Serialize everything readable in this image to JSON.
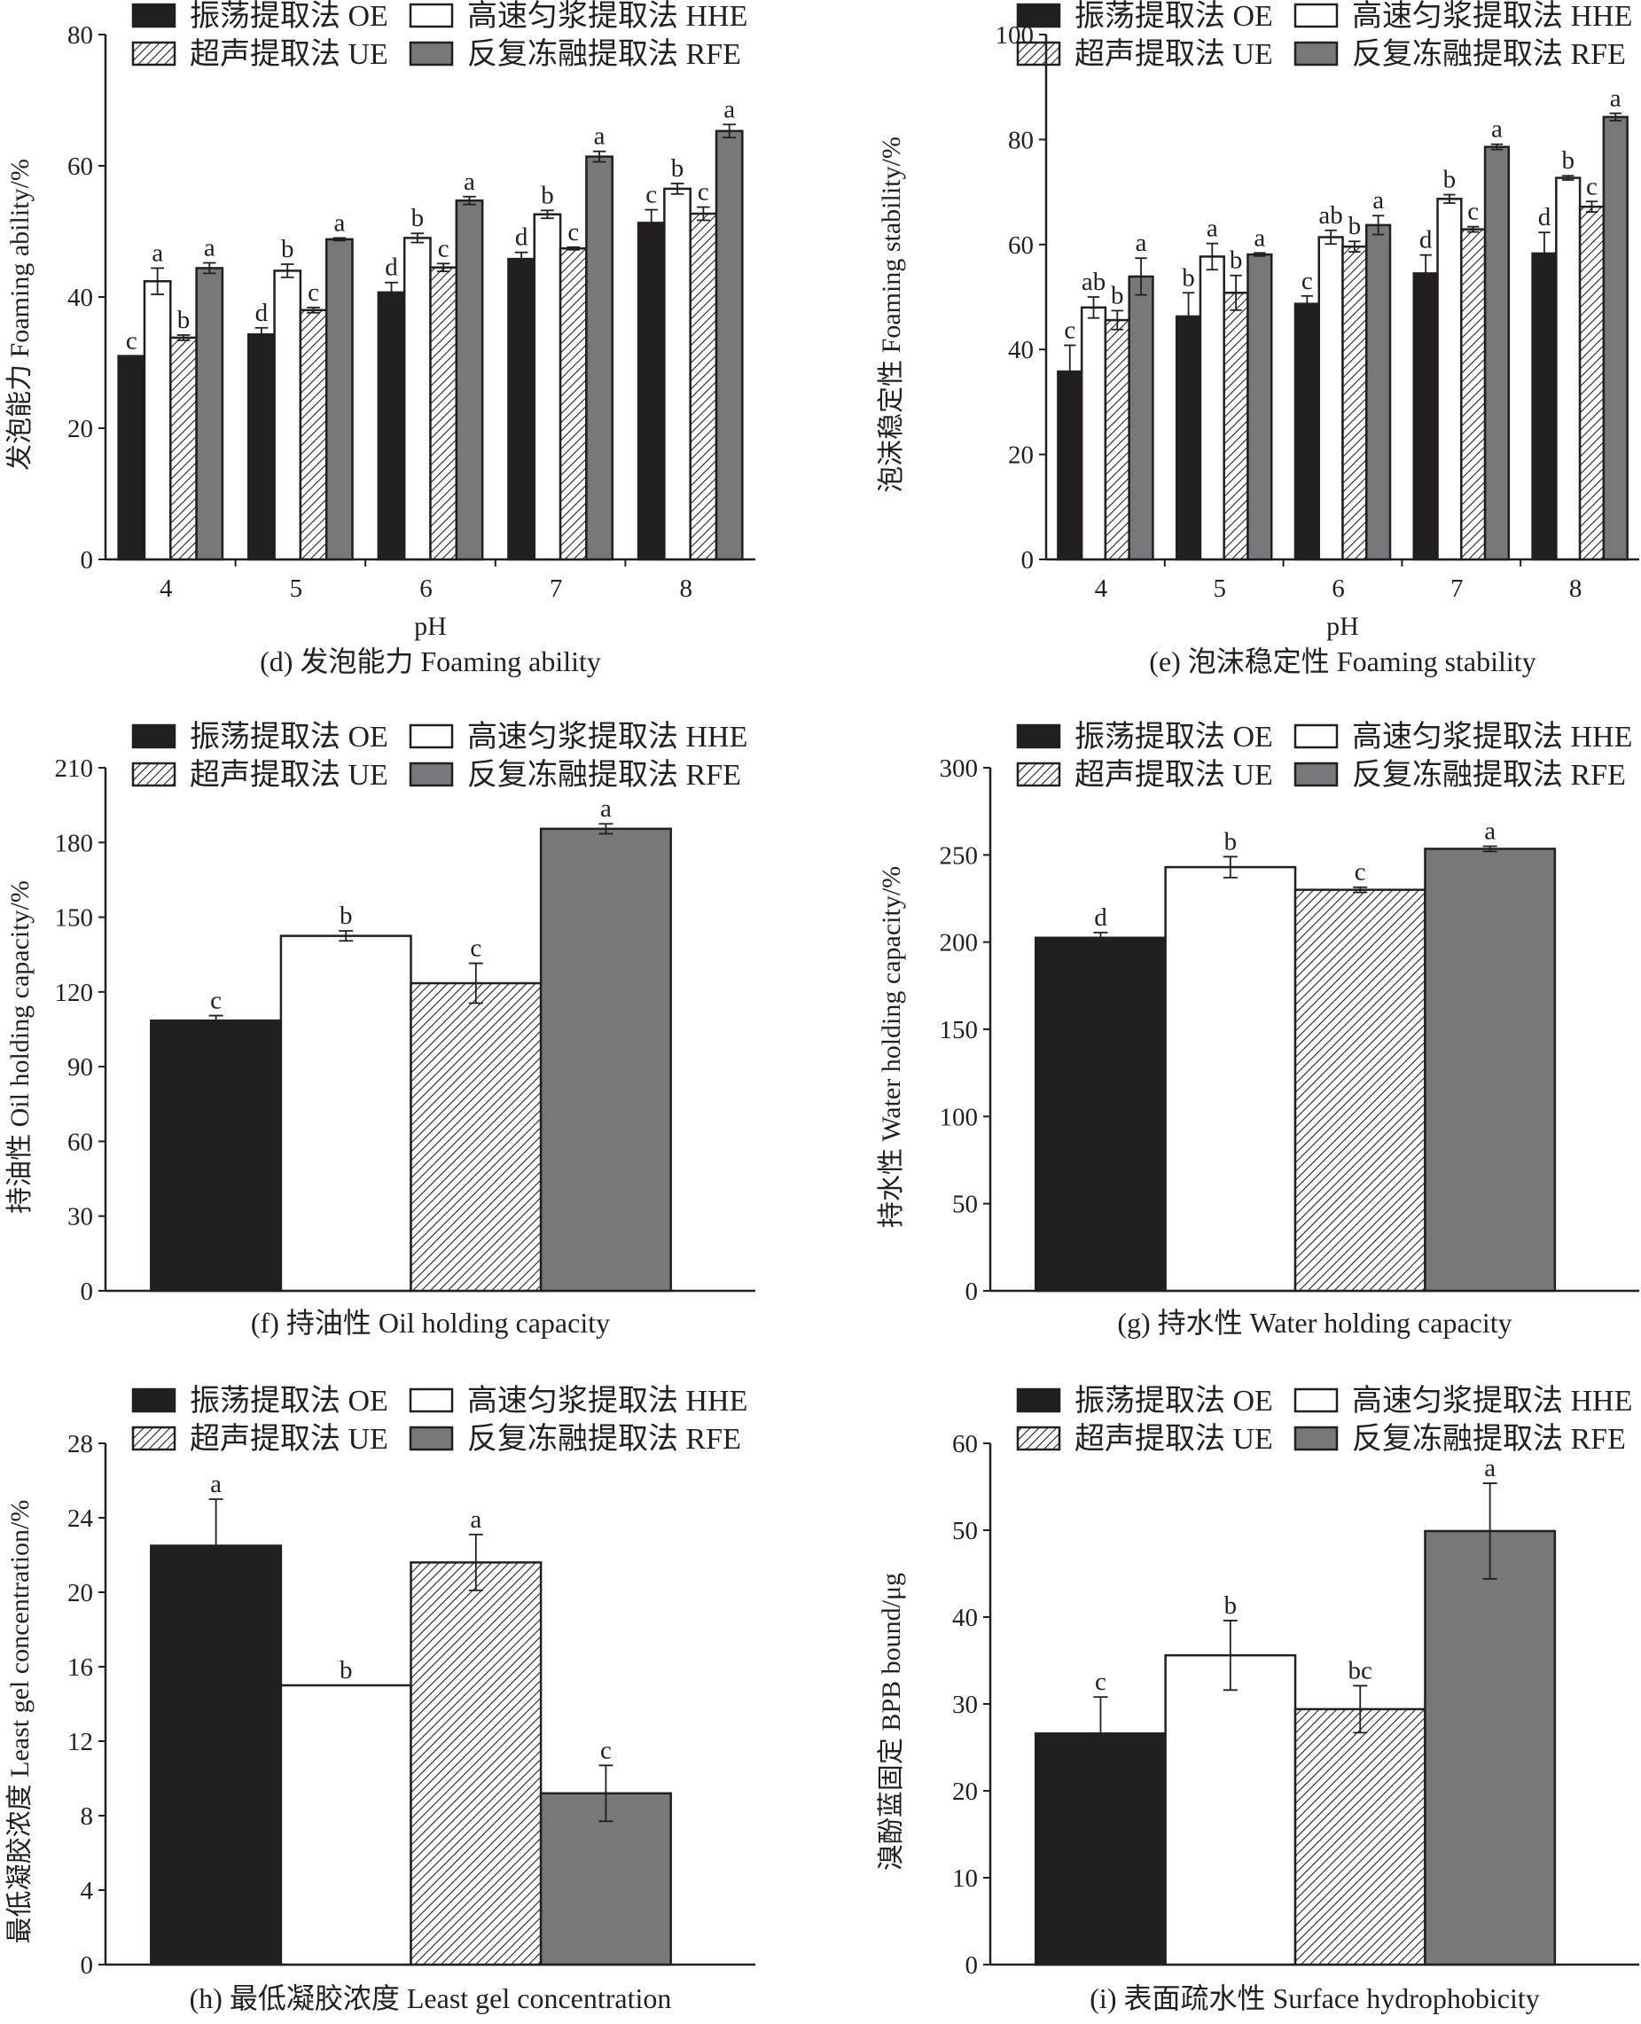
{
  "legend": [
    {
      "label": "振荡提取法  OE",
      "fill": "#231f20"
    },
    {
      "label": "高速匀浆提取法 HHE",
      "fill": "#ffffff"
    },
    {
      "label": "超声提取法 UE",
      "fill": "hatch"
    },
    {
      "label": "反复冻融提取法 RFE",
      "fill": "#77787b"
    }
  ],
  "chart_data": [
    {
      "type": "bar",
      "caption": "(d) 发泡能力 Foaming ability",
      "ylabel": "发泡能力  Foaming ability/%",
      "xlabel": "pH",
      "categories": [
        "4",
        "5",
        "6",
        "7",
        "8"
      ],
      "ylim": [
        0,
        80
      ],
      "yticks": [
        0,
        20,
        40,
        60,
        80
      ],
      "legend": "top",
      "series": [
        {
          "name": "振荡提取法  OE",
          "values": [
            31.0,
            34.3,
            40.7,
            45.8,
            51.3
          ],
          "errors": [
            0,
            1.0,
            1.5,
            1.0,
            2.0
          ],
          "letters": [
            "c",
            "d",
            "d",
            "d",
            "c"
          ]
        },
        {
          "name": "高速匀浆提取法 HHE",
          "values": [
            42.4,
            44.0,
            49.0,
            52.6,
            56.5
          ],
          "errors": [
            2.0,
            1.0,
            0.7,
            0.6,
            0.8
          ],
          "letters": [
            "a",
            "b",
            "b",
            "b",
            "b"
          ]
        },
        {
          "name": "超声提取法 UE",
          "values": [
            33.8,
            38.0,
            44.5,
            47.4,
            52.7
          ],
          "errors": [
            0.4,
            0.4,
            0.6,
            0.2,
            1.0
          ],
          "letters": [
            "b",
            "c",
            "c",
            "c",
            "c"
          ]
        },
        {
          "name": "反复冻融提取法 RFE",
          "values": [
            44.4,
            48.8,
            54.7,
            61.4,
            65.3
          ],
          "errors": [
            0.8,
            0.2,
            0.6,
            0.8,
            1.0
          ],
          "letters": [
            "a",
            "a",
            "a",
            "a",
            "a"
          ]
        }
      ]
    },
    {
      "type": "bar",
      "caption": "(e) 泡沫稳定性 Foaming stability",
      "ylabel": "泡沫稳定性  Foaming stability/%",
      "xlabel": "pH",
      "categories": [
        "4",
        "5",
        "6",
        "7",
        "8"
      ],
      "ylim": [
        0,
        100
      ],
      "yticks": [
        0,
        20,
        40,
        60,
        80,
        100
      ],
      "legend": "top",
      "series": [
        {
          "name": "振荡提取法  OE",
          "values": [
            35.8,
            46.3,
            48.7,
            54.5,
            58.3
          ],
          "errors": [
            5.0,
            4.5,
            1.5,
            3.5,
            4.0
          ],
          "letters": [
            "c",
            "b",
            "c",
            "d",
            "d"
          ]
        },
        {
          "name": "高速匀浆提取法 HHE",
          "values": [
            48.0,
            57.7,
            61.4,
            68.7,
            72.7
          ],
          "errors": [
            2.0,
            2.5,
            1.3,
            0.8,
            0.4
          ],
          "letters": [
            "ab",
            "a",
            "ab",
            "b",
            "b"
          ]
        },
        {
          "name": "超声提取法 UE",
          "values": [
            45.6,
            50.8,
            59.6,
            62.9,
            67.2
          ],
          "errors": [
            1.8,
            3.3,
            1.0,
            0.5,
            1.0
          ],
          "letters": [
            "b",
            "b",
            "b",
            "c",
            "c"
          ]
        },
        {
          "name": "反复冻融提取法 RFE",
          "values": [
            53.9,
            58.1,
            63.7,
            78.6,
            84.3
          ],
          "errors": [
            3.5,
            0.3,
            1.8,
            0.5,
            0.7
          ],
          "letters": [
            "a",
            "a",
            "a",
            "a",
            "a"
          ]
        }
      ]
    },
    {
      "type": "bar",
      "caption": "(f) 持油性 Oil holding capacity",
      "ylabel": "持油性  Oil holding capacity/%",
      "xlabel": "",
      "categories": [
        "OE",
        "HHE",
        "UE",
        "RFE"
      ],
      "ylim": [
        0,
        210
      ],
      "yticks": [
        0,
        30,
        60,
        90,
        120,
        150,
        180,
        210
      ],
      "legend": "top",
      "values": [
        108.5,
        142.5,
        123.5,
        185.5
      ],
      "errors": [
        2,
        2,
        8,
        2
      ],
      "letters": [
        "c",
        "b",
        "c",
        "a"
      ]
    },
    {
      "type": "bar",
      "caption": "(g) 持水性 Water holding capacity",
      "ylabel": "持水性  Water holding capacity/%",
      "xlabel": "",
      "categories": [
        "OE",
        "HHE",
        "UE",
        "RFE"
      ],
      "ylim": [
        0,
        300
      ],
      "yticks": [
        0,
        50,
        100,
        150,
        200,
        250,
        300
      ],
      "legend": "top",
      "values": [
        202.5,
        243,
        230,
        253.5
      ],
      "errors": [
        3,
        6,
        1.5,
        1.5
      ],
      "letters": [
        "d",
        "b",
        "c",
        "a"
      ]
    },
    {
      "type": "bar",
      "caption": "(h) 最低凝胶浓度 Least gel concentration",
      "ylabel": "最低凝胶浓度  Least gel concentration/%",
      "xlabel": "",
      "categories": [
        "OE",
        "HHE",
        "UE",
        "RFE"
      ],
      "ylim": [
        0,
        28
      ],
      "yticks": [
        0,
        4,
        8,
        12,
        16,
        20,
        24,
        28
      ],
      "legend": "top",
      "values": [
        22.5,
        15.0,
        21.6,
        9.2
      ],
      "errors": [
        2.5,
        0,
        1.5,
        1.5
      ],
      "letters": [
        "a",
        "b",
        "a",
        "c"
      ]
    },
    {
      "type": "bar",
      "caption": "(i) 表面疏水性 Surface hydrophobicity",
      "ylabel": "溴酚蓝固定  BPB bound/μg",
      "xlabel": "",
      "categories": [
        "OE",
        "HHE",
        "UE",
        "RFE"
      ],
      "ylim": [
        0,
        60
      ],
      "yticks": [
        0,
        10,
        20,
        30,
        40,
        50,
        60
      ],
      "legend": "top",
      "values": [
        26.6,
        35.6,
        29.4,
        49.9
      ],
      "errors": [
        4.2,
        4.0,
        2.7,
        5.5
      ],
      "letters": [
        "c",
        "b",
        "bc",
        "a"
      ]
    }
  ]
}
